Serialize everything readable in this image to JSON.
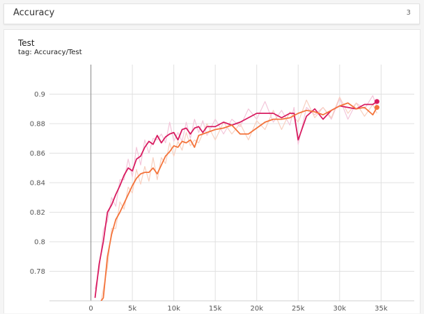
{
  "header": {
    "title": "Accuracy",
    "count": "3"
  },
  "card": {
    "title": "Test",
    "tag": "tag: Accuracy/Test"
  },
  "colors": {
    "series_pink": "#d81b60",
    "series_orange": "#f4743b",
    "raw_pink": "#f3c6da",
    "raw_orange": "#f8d0c0",
    "grid": "#e0e0e0",
    "axis": "#9e9e9e"
  },
  "chart_data": {
    "type": "line",
    "title": "",
    "xlabel": "",
    "ylabel": "",
    "xlim": [
      -5000,
      39000
    ],
    "ylim": [
      0.76,
      0.92
    ],
    "grid": true,
    "x_ticks": [
      0,
      5000,
      10000,
      15000,
      20000,
      25000,
      30000,
      35000
    ],
    "x_tick_labels": [
      "0",
      "5k",
      "10k",
      "15k",
      "20k",
      "25k",
      "30k",
      "35k"
    ],
    "y_ticks": [
      0.78,
      0.8,
      0.82,
      0.84,
      0.86,
      0.88,
      0.9
    ],
    "y_tick_labels": [
      "0.78",
      "0.8",
      "0.82",
      "0.84",
      "0.86",
      "0.88",
      "0.9"
    ],
    "series": [
      {
        "color": "#d81b60",
        "x": [
          500,
          1000,
          1500,
          2000,
          2500,
          3000,
          3500,
          4000,
          4500,
          5000,
          5500,
          6000,
          6500,
          7000,
          7500,
          8000,
          8500,
          9000,
          9500,
          10000,
          10500,
          11000,
          11500,
          12000,
          12500,
          13000,
          13500,
          14000,
          15000,
          16000,
          17000,
          18000,
          19000,
          20000,
          21000,
          22000,
          23000,
          24000,
          24500,
          25000,
          26000,
          27000,
          28000,
          29000,
          30000,
          31000,
          32000,
          33000,
          34000,
          34500
        ],
        "y": [
          0.762,
          0.785,
          0.8,
          0.82,
          0.825,
          0.832,
          0.838,
          0.845,
          0.85,
          0.848,
          0.856,
          0.858,
          0.864,
          0.868,
          0.866,
          0.872,
          0.867,
          0.871,
          0.873,
          0.874,
          0.869,
          0.876,
          0.877,
          0.873,
          0.877,
          0.878,
          0.874,
          0.878,
          0.878,
          0.881,
          0.879,
          0.881,
          0.884,
          0.887,
          0.887,
          0.887,
          0.884,
          0.887,
          0.887,
          0.869,
          0.885,
          0.89,
          0.883,
          0.889,
          0.892,
          0.891,
          0.89,
          0.893,
          0.893,
          0.895
        ]
      },
      {
        "color": "#f4743b",
        "x": [
          1000,
          1500,
          2000,
          2500,
          3000,
          3500,
          4000,
          4500,
          5000,
          5500,
          6000,
          6500,
          7000,
          7500,
          8000,
          8500,
          9000,
          9500,
          10000,
          10500,
          11000,
          11500,
          12000,
          12500,
          13000,
          14000,
          15000,
          16000,
          17000,
          18000,
          19000,
          20000,
          21000,
          22000,
          23000,
          24000,
          25000,
          26000,
          27000,
          28000,
          29000,
          30000,
          31000,
          32000,
          33000,
          34000,
          34500
        ],
        "y": [
          0.758,
          0.762,
          0.79,
          0.805,
          0.815,
          0.82,
          0.826,
          0.832,
          0.838,
          0.843,
          0.846,
          0.847,
          0.847,
          0.85,
          0.846,
          0.852,
          0.858,
          0.861,
          0.865,
          0.864,
          0.868,
          0.867,
          0.869,
          0.864,
          0.872,
          0.874,
          0.876,
          0.877,
          0.879,
          0.873,
          0.873,
          0.877,
          0.881,
          0.883,
          0.883,
          0.884,
          0.887,
          0.889,
          0.888,
          0.886,
          0.889,
          0.892,
          0.894,
          0.89,
          0.891,
          0.886,
          0.891
        ]
      }
    ]
  }
}
